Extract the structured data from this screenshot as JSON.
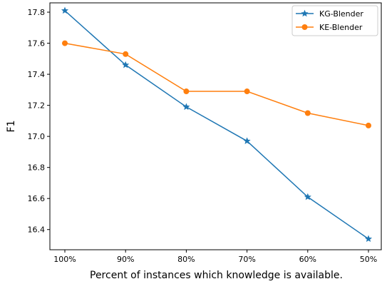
{
  "chart_data": {
    "type": "line",
    "xlabel": "Percent of instances which knowledge is available.",
    "ylabel": "F1",
    "categories": [
      "100%",
      "90%",
      "80%",
      "70%",
      "60%",
      "50%"
    ],
    "ylim": [
      16.27,
      17.86
    ],
    "yticks": [
      16.4,
      16.6,
      16.8,
      17.0,
      17.2,
      17.4,
      17.6,
      17.8
    ],
    "ytick_labels": [
      "16.4",
      "16.6",
      "16.8",
      "17.0",
      "17.2",
      "17.4",
      "17.6",
      "17.8"
    ],
    "grid": false,
    "legend_position": "top-right",
    "series": [
      {
        "name": "KG-Blender",
        "color": "#1f77b4",
        "marker": "star",
        "values": [
          17.81,
          17.46,
          17.19,
          16.97,
          16.61,
          16.34
        ]
      },
      {
        "name": "KE-Blender",
        "color": "#ff7f0e",
        "marker": "circle",
        "values": [
          17.6,
          17.53,
          17.29,
          17.29,
          17.15,
          17.07
        ]
      }
    ]
  }
}
